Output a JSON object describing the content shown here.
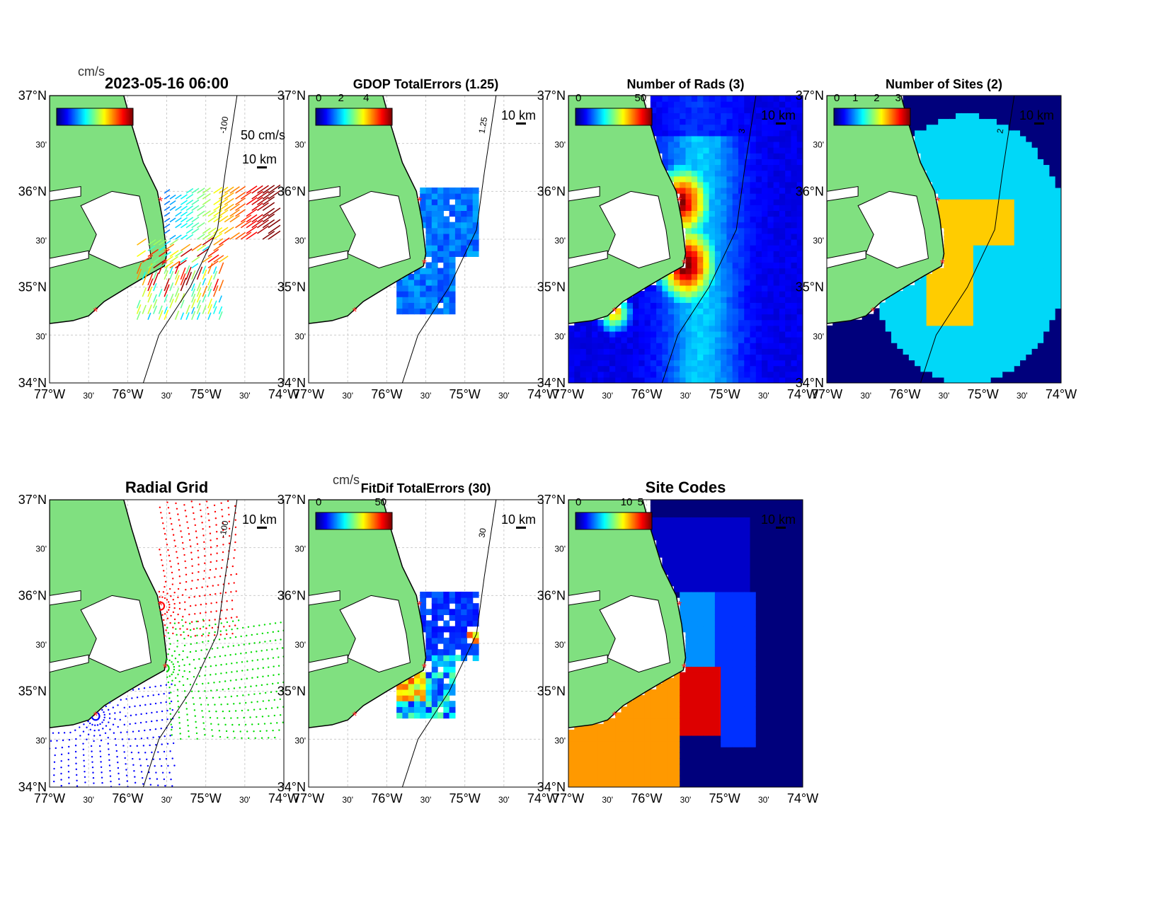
{
  "figure": {
    "lon_ticks": [
      "77°W",
      "30'",
      "76°W",
      "30'",
      "75°W",
      "30'",
      "74°W"
    ],
    "lat_ticks": [
      "34°N",
      "30'",
      "35°N",
      "30'",
      "36°N",
      "30'",
      "37°N"
    ],
    "scale_label": "10 km",
    "panels": [
      {
        "id": "currents",
        "title": "2023-05-16 06:00",
        "units": "cm/s",
        "cbar_ticks": [],
        "vector_label": "50 cm/s",
        "contour_label": "-100",
        "kind": "vectors"
      },
      {
        "id": "gdop",
        "title": "GDOP TotalErrors (1.25)",
        "units": "",
        "cbar_ticks": [
          "0",
          "2",
          "4"
        ],
        "contour_label": "1.25",
        "kind": "gdop"
      },
      {
        "id": "nrads",
        "title": "Number of Rads (3)",
        "units": "",
        "cbar_ticks": [
          "0",
          "50"
        ],
        "contour_label": "3",
        "kind": "rads"
      },
      {
        "id": "nsites",
        "title": "Number of Sites (2)",
        "units": "",
        "cbar_ticks": [
          "0",
          "1",
          "2",
          "3"
        ],
        "contour_label": "2",
        "kind": "sites"
      },
      {
        "id": "radialgrid",
        "title": "Radial Grid",
        "units": "",
        "cbar_ticks": [],
        "contour_label": "-100",
        "kind": "grid"
      },
      {
        "id": "fitdif",
        "title": "FitDif TotalErrors (30)",
        "units": "cm/s",
        "cbar_ticks": [
          "0",
          "50"
        ],
        "contour_label": "30",
        "kind": "fitdif"
      },
      {
        "id": "sitecodes",
        "title": "Site Codes",
        "units": "",
        "cbar_ticks": [
          "0",
          "5",
          "10"
        ],
        "contour_label": "",
        "kind": "codes"
      }
    ],
    "sites": [
      {
        "lon": -75.58,
        "lat": 35.89
      },
      {
        "lon": -75.52,
        "lat": 35.24
      },
      {
        "lon": -76.41,
        "lat": 34.74
      }
    ],
    "colors": {
      "land": "#80e080",
      "site": "#ff2020"
    }
  }
}
